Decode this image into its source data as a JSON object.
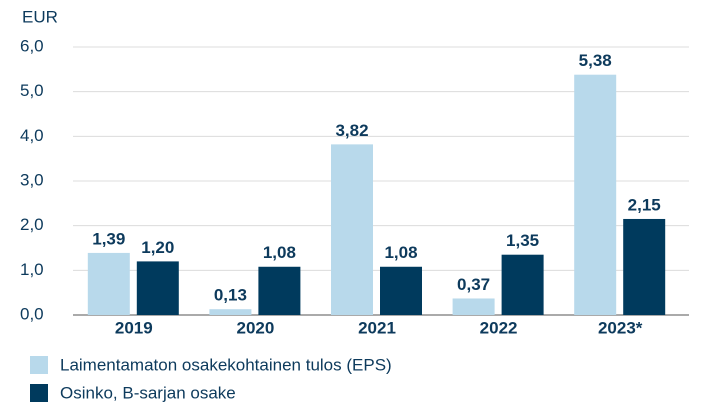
{
  "chart_data": {
    "type": "bar",
    "y_label": "EUR",
    "categories": [
      "2019",
      "2020",
      "2021",
      "2022",
      "2023*"
    ],
    "series": [
      {
        "name": "Laimentamaton osakekohtainen tulos (EPS)",
        "color": "#b8d9eb",
        "values": [
          1.39,
          0.13,
          3.82,
          0.37,
          5.38
        ],
        "value_labels": [
          "1,39",
          "0,13",
          "3,82",
          "0,37",
          "5,38"
        ]
      },
      {
        "name": "Osinko, B-sarjan osake",
        "color": "#003a5d",
        "values": [
          1.2,
          1.08,
          1.08,
          1.35,
          2.15
        ],
        "value_labels": [
          "1,20",
          "1,08",
          "1,08",
          "1,35",
          "2,15"
        ]
      }
    ],
    "ylim": [
      0,
      6
    ],
    "yticks": [
      {
        "value": 0,
        "label": "0,0"
      },
      {
        "value": 1,
        "label": "1,0"
      },
      {
        "value": 2,
        "label": "2,0"
      },
      {
        "value": 3,
        "label": "3,0"
      },
      {
        "value": 4,
        "label": "4,0"
      },
      {
        "value": 5,
        "label": "5,0"
      },
      {
        "value": 6,
        "label": "6,0"
      }
    ],
    "grid": true,
    "legend": "bottom-left"
  }
}
